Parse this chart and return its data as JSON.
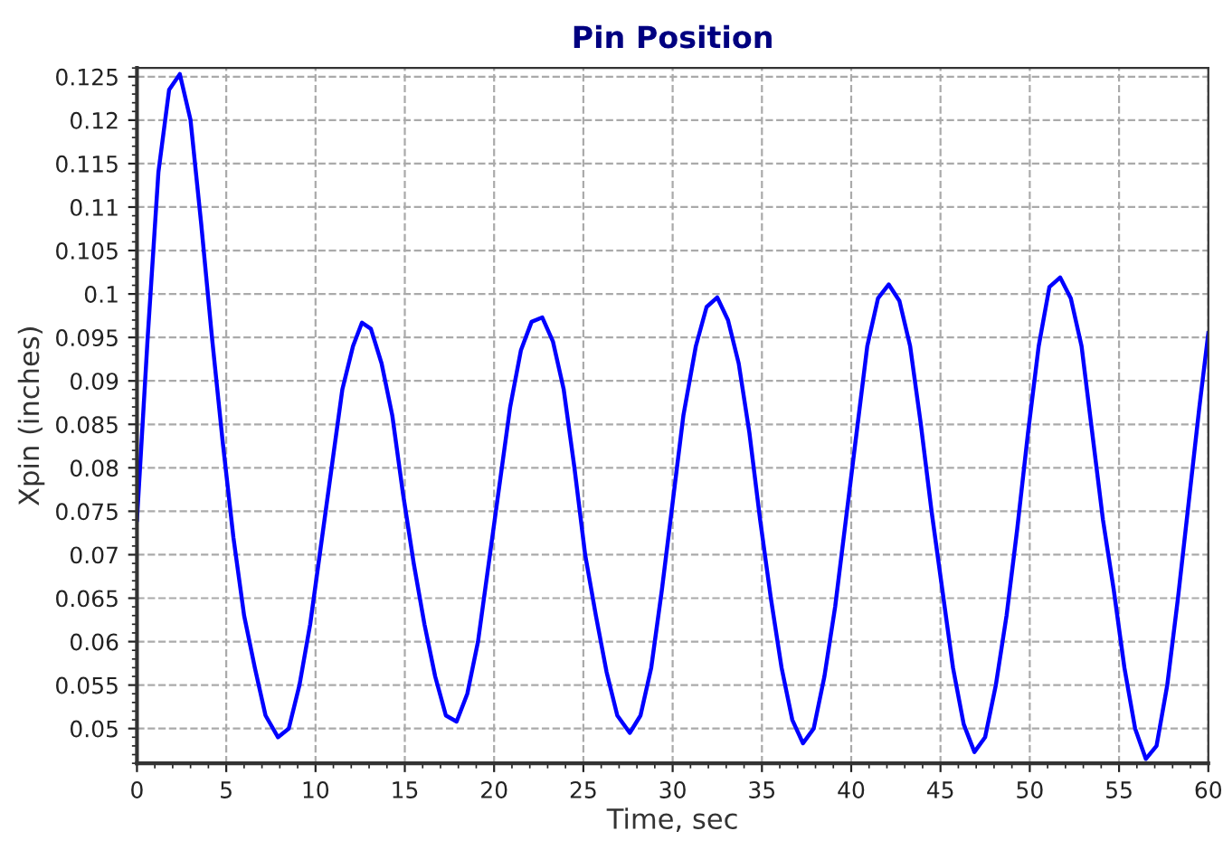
{
  "chart_data": {
    "type": "line",
    "title": "Pin Position",
    "xlabel": "Time, sec",
    "ylabel": "Xpin (inches)",
    "xlim": [
      0,
      60
    ],
    "xticks": [
      0,
      5,
      10,
      15,
      20,
      25,
      30,
      35,
      40,
      45,
      50,
      55,
      60
    ],
    "ylim": [
      0.046,
      0.126
    ],
    "yticks": [
      0.05,
      0.055,
      0.06,
      0.065,
      0.07,
      0.075,
      0.08,
      0.085,
      0.09,
      0.095,
      0.1,
      0.105,
      0.11,
      0.115,
      0.12,
      0.125
    ],
    "grid": true,
    "legend": false,
    "marker": "none",
    "line_style": "solid",
    "series": [
      {
        "color": "#0000ff",
        "x": [
          0,
          0.6,
          1.2,
          1.8,
          2.4,
          3.0,
          3.6,
          4.2,
          4.8,
          5.4,
          6.0,
          6.6,
          7.2,
          7.9,
          8.5,
          9.1,
          9.7,
          10.3,
          10.9,
          11.5,
          12.1,
          12.6,
          13.1,
          13.7,
          14.3,
          14.9,
          15.5,
          16.1,
          16.7,
          17.3,
          17.9,
          18.5,
          19.1,
          19.7,
          20.3,
          20.9,
          21.5,
          22.1,
          22.7,
          23.3,
          23.9,
          24.5,
          25.1,
          25.7,
          26.3,
          26.9,
          27.6,
          28.2,
          28.8,
          29.4,
          30.0,
          30.6,
          31.3,
          31.9,
          32.5,
          33.1,
          33.7,
          34.3,
          34.9,
          35.5,
          36.1,
          36.7,
          37.3,
          37.9,
          38.5,
          39.1,
          39.7,
          40.3,
          40.9,
          41.5,
          42.1,
          42.7,
          43.3,
          43.9,
          44.5,
          45.1,
          45.7,
          46.3,
          46.9,
          47.5,
          48.1,
          48.7,
          49.3,
          49.9,
          50.5,
          51.1,
          51.7,
          52.3,
          52.9,
          53.5,
          54.1,
          54.7,
          55.3,
          55.9,
          56.5,
          57.1,
          57.7,
          58.3,
          58.9,
          59.5,
          60
        ],
        "values": [
          0.074,
          0.095,
          0.114,
          0.1235,
          0.1253,
          0.12,
          0.108,
          0.095,
          0.083,
          0.072,
          0.063,
          0.057,
          0.0515,
          0.049,
          0.05,
          0.055,
          0.062,
          0.071,
          0.08,
          0.089,
          0.094,
          0.0967,
          0.096,
          0.092,
          0.086,
          0.077,
          0.069,
          0.062,
          0.056,
          0.0515,
          0.0508,
          0.054,
          0.06,
          0.069,
          0.078,
          0.087,
          0.0935,
          0.0968,
          0.0973,
          0.0945,
          0.089,
          0.08,
          0.07,
          0.063,
          0.0565,
          0.0515,
          0.0495,
          0.0515,
          0.057,
          0.066,
          0.076,
          0.086,
          0.094,
          0.0985,
          0.0996,
          0.097,
          0.092,
          0.084,
          0.074,
          0.065,
          0.057,
          0.051,
          0.0483,
          0.05,
          0.056,
          0.064,
          0.074,
          0.084,
          0.094,
          0.0995,
          0.1011,
          0.0992,
          0.094,
          0.085,
          0.075,
          0.066,
          0.057,
          0.0505,
          0.0473,
          0.049,
          0.055,
          0.063,
          0.073,
          0.084,
          0.094,
          0.1008,
          0.1019,
          0.0995,
          0.094,
          0.084,
          0.074,
          0.066,
          0.057,
          0.05,
          0.0465,
          0.048,
          0.055,
          0.065,
          0.076,
          0.087,
          0.0955
        ]
      }
    ]
  }
}
